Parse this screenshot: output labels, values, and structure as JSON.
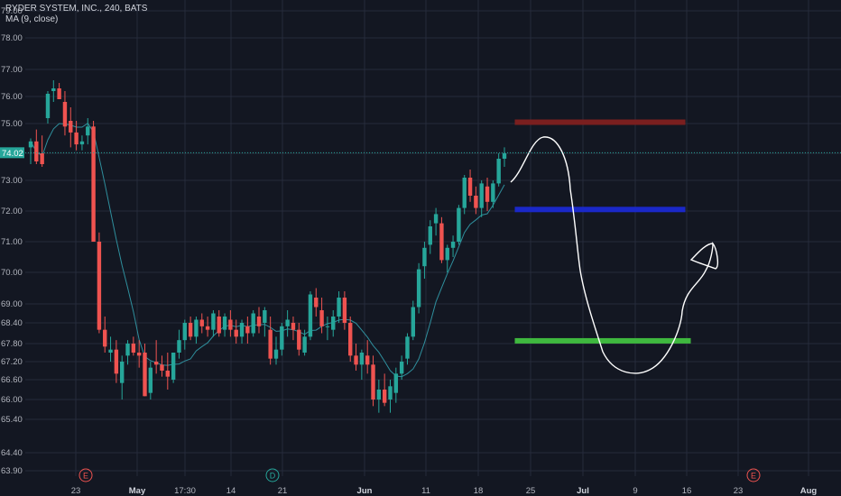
{
  "legend": {
    "symbol": "RYDER SYSTEM, INC., 240, BATS",
    "indicator": "MA (9, close)"
  },
  "last_price_label": "74.02",
  "colors": {
    "background": "#131722",
    "grid": "#262b3b",
    "up": "#26a69a",
    "down": "#ef5350",
    "ma": "#2f8f9d",
    "price_line": "#26a69a",
    "line_top": "#7a1f1f",
    "line_mid": "#1a28c8",
    "line_bottom": "#3fb83f",
    "drawing": "#ffffff"
  },
  "events": [
    {
      "label": "E",
      "x": "23",
      "color": "#ef5350"
    },
    {
      "label": "D",
      "x": "21",
      "color": "#26a69a"
    },
    {
      "label": "E",
      "x": "23 (Jul)",
      "color": "#ef5350"
    }
  ],
  "chart_data": {
    "type": "candlestick",
    "title": "RYDER SYSTEM, INC., 240, BATS",
    "ylim": [
      63.6,
      79.2
    ],
    "yticks": [
      "79.00",
      "78.00",
      "77.00",
      "76.00",
      "75.00",
      "74.00",
      "73.00",
      "72.00",
      "71.00",
      "70.00",
      "69.00",
      "68.40",
      "67.80",
      "67.20",
      "66.60",
      "66.00",
      "65.40",
      "64.40",
      "63.90"
    ],
    "xticks": [
      "23",
      "May",
      "17:30",
      "14",
      "21",
      "Jun",
      "11",
      "18",
      "25",
      "Jul",
      "9",
      "16",
      "23",
      "Aug"
    ],
    "bold_xticks": [
      "May",
      "Jun",
      "Jul",
      "Aug"
    ],
    "series": [
      {
        "name": "MA (9, close)",
        "kind": "moving-average"
      }
    ],
    "candles_ohlc": [
      [
        74.2,
        74.5,
        73.6,
        74.4
      ],
      [
        74.4,
        74.8,
        73.6,
        73.7
      ],
      [
        74.0,
        74.6,
        73.5,
        73.6
      ],
      [
        75.2,
        76.2,
        75.0,
        76.1
      ],
      [
        76.2,
        76.6,
        75.8,
        76.3
      ],
      [
        76.3,
        76.5,
        75.9,
        75.9
      ],
      [
        75.8,
        76.2,
        74.6,
        74.9
      ],
      [
        75.1,
        75.6,
        74.2,
        74.7
      ],
      [
        74.7,
        75.1,
        74.1,
        74.3
      ],
      [
        74.3,
        74.6,
        74.1,
        74.4
      ],
      [
        74.6,
        75.2,
        74.3,
        74.9
      ],
      [
        74.9,
        75.1,
        71.0,
        71.0
      ],
      [
        71.0,
        71.3,
        68.1,
        68.2
      ],
      [
        68.2,
        68.6,
        67.5,
        67.7
      ],
      [
        67.5,
        68.0,
        67.2,
        67.6
      ],
      [
        67.6,
        67.9,
        66.5,
        66.8
      ],
      [
        66.5,
        67.4,
        66.0,
        67.2
      ],
      [
        67.4,
        67.9,
        67.1,
        67.8
      ],
      [
        67.8,
        68.0,
        67.4,
        67.5
      ],
      [
        67.5,
        67.9,
        67.0,
        67.4
      ],
      [
        67.5,
        67.8,
        66.1,
        66.1
      ],
      [
        66.2,
        67.2,
        66.0,
        67.0
      ],
      [
        67.2,
        67.9,
        66.8,
        67.1
      ],
      [
        67.1,
        67.4,
        66.7,
        66.9
      ],
      [
        66.9,
        67.5,
        66.3,
        66.7
      ],
      [
        66.6,
        67.5,
        66.5,
        67.5
      ],
      [
        67.5,
        68.2,
        67.3,
        67.9
      ],
      [
        67.9,
        68.5,
        67.6,
        68.4
      ],
      [
        68.4,
        68.6,
        67.9,
        68.0
      ],
      [
        68.0,
        68.6,
        67.8,
        68.5
      ],
      [
        68.5,
        68.7,
        68.1,
        68.3
      ],
      [
        68.3,
        68.6,
        68.0,
        68.2
      ],
      [
        68.2,
        68.8,
        68.0,
        68.7
      ],
      [
        68.6,
        68.8,
        68.0,
        68.1
      ],
      [
        68.2,
        68.7,
        68.0,
        68.6
      ],
      [
        68.5,
        68.8,
        68.0,
        68.2
      ],
      [
        68.2,
        68.5,
        67.8,
        68.0
      ],
      [
        68.0,
        68.5,
        67.8,
        68.4
      ],
      [
        68.3,
        68.6,
        67.8,
        68.1
      ],
      [
        68.1,
        68.8,
        68.0,
        68.7
      ],
      [
        68.6,
        68.9,
        68.1,
        68.3
      ],
      [
        68.4,
        68.9,
        68.0,
        68.8
      ],
      [
        68.2,
        68.6,
        67.1,
        67.3
      ],
      [
        67.3,
        68.0,
        67.1,
        67.6
      ],
      [
        67.6,
        68.4,
        67.4,
        68.3
      ],
      [
        68.3,
        68.8,
        68.0,
        68.5
      ],
      [
        68.4,
        68.6,
        67.9,
        68.2
      ],
      [
        68.2,
        68.4,
        67.4,
        67.6
      ],
      [
        67.5,
        68.2,
        67.4,
        68.0
      ],
      [
        68.0,
        69.4,
        67.9,
        69.3
      ],
      [
        69.2,
        69.5,
        68.6,
        68.9
      ],
      [
        68.8,
        69.2,
        68.1,
        68.3
      ],
      [
        68.3,
        68.6,
        67.9,
        68.3
      ],
      [
        68.2,
        68.8,
        68.0,
        68.6
      ],
      [
        68.6,
        69.4,
        68.4,
        69.2
      ],
      [
        69.2,
        69.4,
        68.2,
        68.4
      ],
      [
        68.4,
        68.6,
        67.2,
        67.4
      ],
      [
        67.4,
        67.8,
        66.9,
        67.1
      ],
      [
        67.1,
        67.6,
        66.6,
        67.5
      ],
      [
        67.4,
        67.9,
        66.8,
        67.1
      ],
      [
        67.1,
        67.4,
        65.8,
        66.0
      ],
      [
        66.0,
        66.6,
        65.6,
        66.3
      ],
      [
        66.3,
        66.8,
        65.8,
        65.9
      ],
      [
        66.0,
        66.6,
        65.6,
        66.4
      ],
      [
        66.2,
        67.0,
        65.9,
        66.8
      ],
      [
        66.8,
        67.4,
        66.6,
        67.2
      ],
      [
        67.3,
        68.1,
        67.1,
        68.0
      ],
      [
        68.0,
        69.1,
        67.9,
        68.9
      ],
      [
        68.9,
        70.3,
        68.7,
        70.1
      ],
      [
        70.2,
        71.0,
        69.8,
        70.8
      ],
      [
        70.9,
        71.7,
        70.6,
        71.5
      ],
      [
        71.6,
        72.1,
        71.2,
        71.9
      ],
      [
        71.6,
        71.8,
        70.3,
        70.4
      ],
      [
        70.4,
        70.9,
        70.0,
        70.8
      ],
      [
        70.8,
        71.2,
        70.5,
        71.0
      ],
      [
        71.0,
        72.2,
        70.9,
        72.1
      ],
      [
        72.1,
        73.2,
        71.9,
        73.1
      ],
      [
        73.1,
        73.4,
        72.3,
        72.5
      ],
      [
        72.5,
        72.8,
        71.9,
        72.1
      ],
      [
        72.1,
        73.0,
        71.8,
        72.9
      ],
      [
        72.8,
        73.1,
        72.0,
        72.3
      ],
      [
        72.3,
        73.0,
        72.1,
        72.9
      ],
      [
        72.9,
        74.0,
        72.8,
        73.8
      ],
      [
        73.8,
        74.2,
        73.5,
        74.0
      ]
    ],
    "horizontal_levels": [
      {
        "price": 75.05,
        "color": "line_top"
      },
      {
        "price": 72.05,
        "color": "line_mid"
      },
      {
        "price": 67.88,
        "color": "line_bottom"
      }
    ],
    "last_price": 74.02,
    "grid": true
  }
}
